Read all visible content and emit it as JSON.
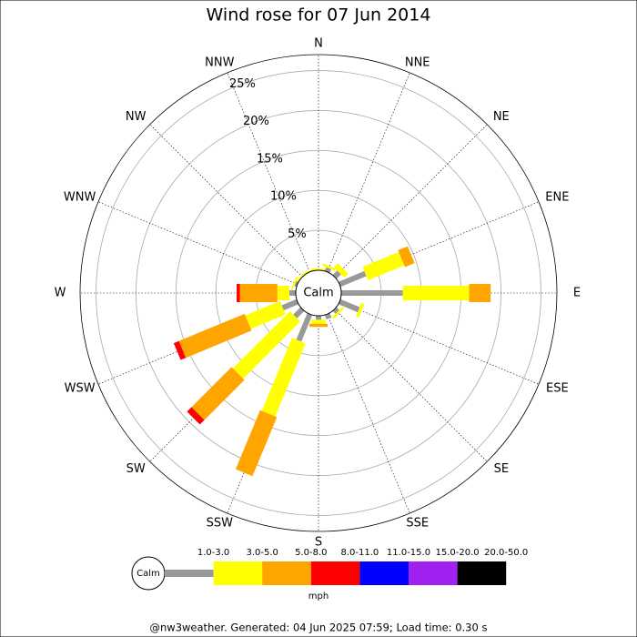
{
  "chart_data": {
    "type": "windrose",
    "title": "Wind rose for 07 Jun 2014",
    "categories": [
      "N",
      "NNE",
      "NE",
      "ENE",
      "E",
      "ESE",
      "SE",
      "SSE",
      "S",
      "SSW",
      "SW",
      "WSW",
      "W",
      "WNW",
      "NW",
      "NNW"
    ],
    "series": [
      {
        "name": "1.0-3.0",
        "color": "#999999",
        "values": [
          0,
          0.5,
          0.8,
          3.5,
          7.7,
          2.6,
          0.5,
          0.6,
          0.5,
          3.6,
          1.3,
          2.0,
          0.8,
          0.3,
          0,
          0
        ]
      },
      {
        "name": "3.0-5.0",
        "color": "#ffff00",
        "values": [
          0.2,
          0.3,
          0.7,
          4.9,
          8.3,
          0.4,
          0.3,
          0,
          0.5,
          9.9,
          10.1,
          4.7,
          1.5,
          0.2,
          0.2,
          0.2
        ]
      },
      {
        "name": "5.0-8.0",
        "color": "#ffa500",
        "values": [
          0,
          0,
          0,
          1.3,
          2.7,
          0,
          0,
          0,
          0.4,
          8.0,
          7.1,
          8.9,
          4.7,
          0,
          0,
          0
        ]
      },
      {
        "name": "8.0-11.0",
        "color": "#ff0000",
        "values": [
          0,
          0,
          0,
          0,
          0,
          0,
          0,
          0,
          0,
          0,
          0.8,
          0.7,
          0.4,
          0,
          0,
          0
        ]
      },
      {
        "name": "11.0-15.0",
        "color": "#0000ff",
        "values": [
          0,
          0,
          0,
          0,
          0,
          0,
          0,
          0,
          0,
          0,
          0,
          0,
          0,
          0,
          0,
          0
        ]
      },
      {
        "name": "15.0-20.0",
        "color": "#a020f0",
        "values": [
          0,
          0,
          0,
          0,
          0,
          0,
          0,
          0,
          0,
          0,
          0,
          0,
          0,
          0,
          0,
          0
        ]
      },
      {
        "name": "20.0-50.0",
        "color": "#000000",
        "values": [
          0,
          0,
          0,
          0,
          0,
          0,
          0,
          0,
          0,
          0,
          0,
          0,
          0,
          0,
          0,
          0
        ]
      }
    ],
    "ylim": [
      0,
      27
    ],
    "yticks": [
      {
        "value": 5,
        "label": "5%"
      },
      {
        "value": 10,
        "label": "10%"
      },
      {
        "value": 15,
        "label": "15%"
      },
      {
        "value": 20,
        "label": "20%"
      },
      {
        "value": 25,
        "label": "25%"
      }
    ],
    "calm_label": "Calm",
    "unit": "mph",
    "footer": "@nw3weather. Generated: 04 Jun 2025 07:59; Load time: 0.30 s"
  }
}
